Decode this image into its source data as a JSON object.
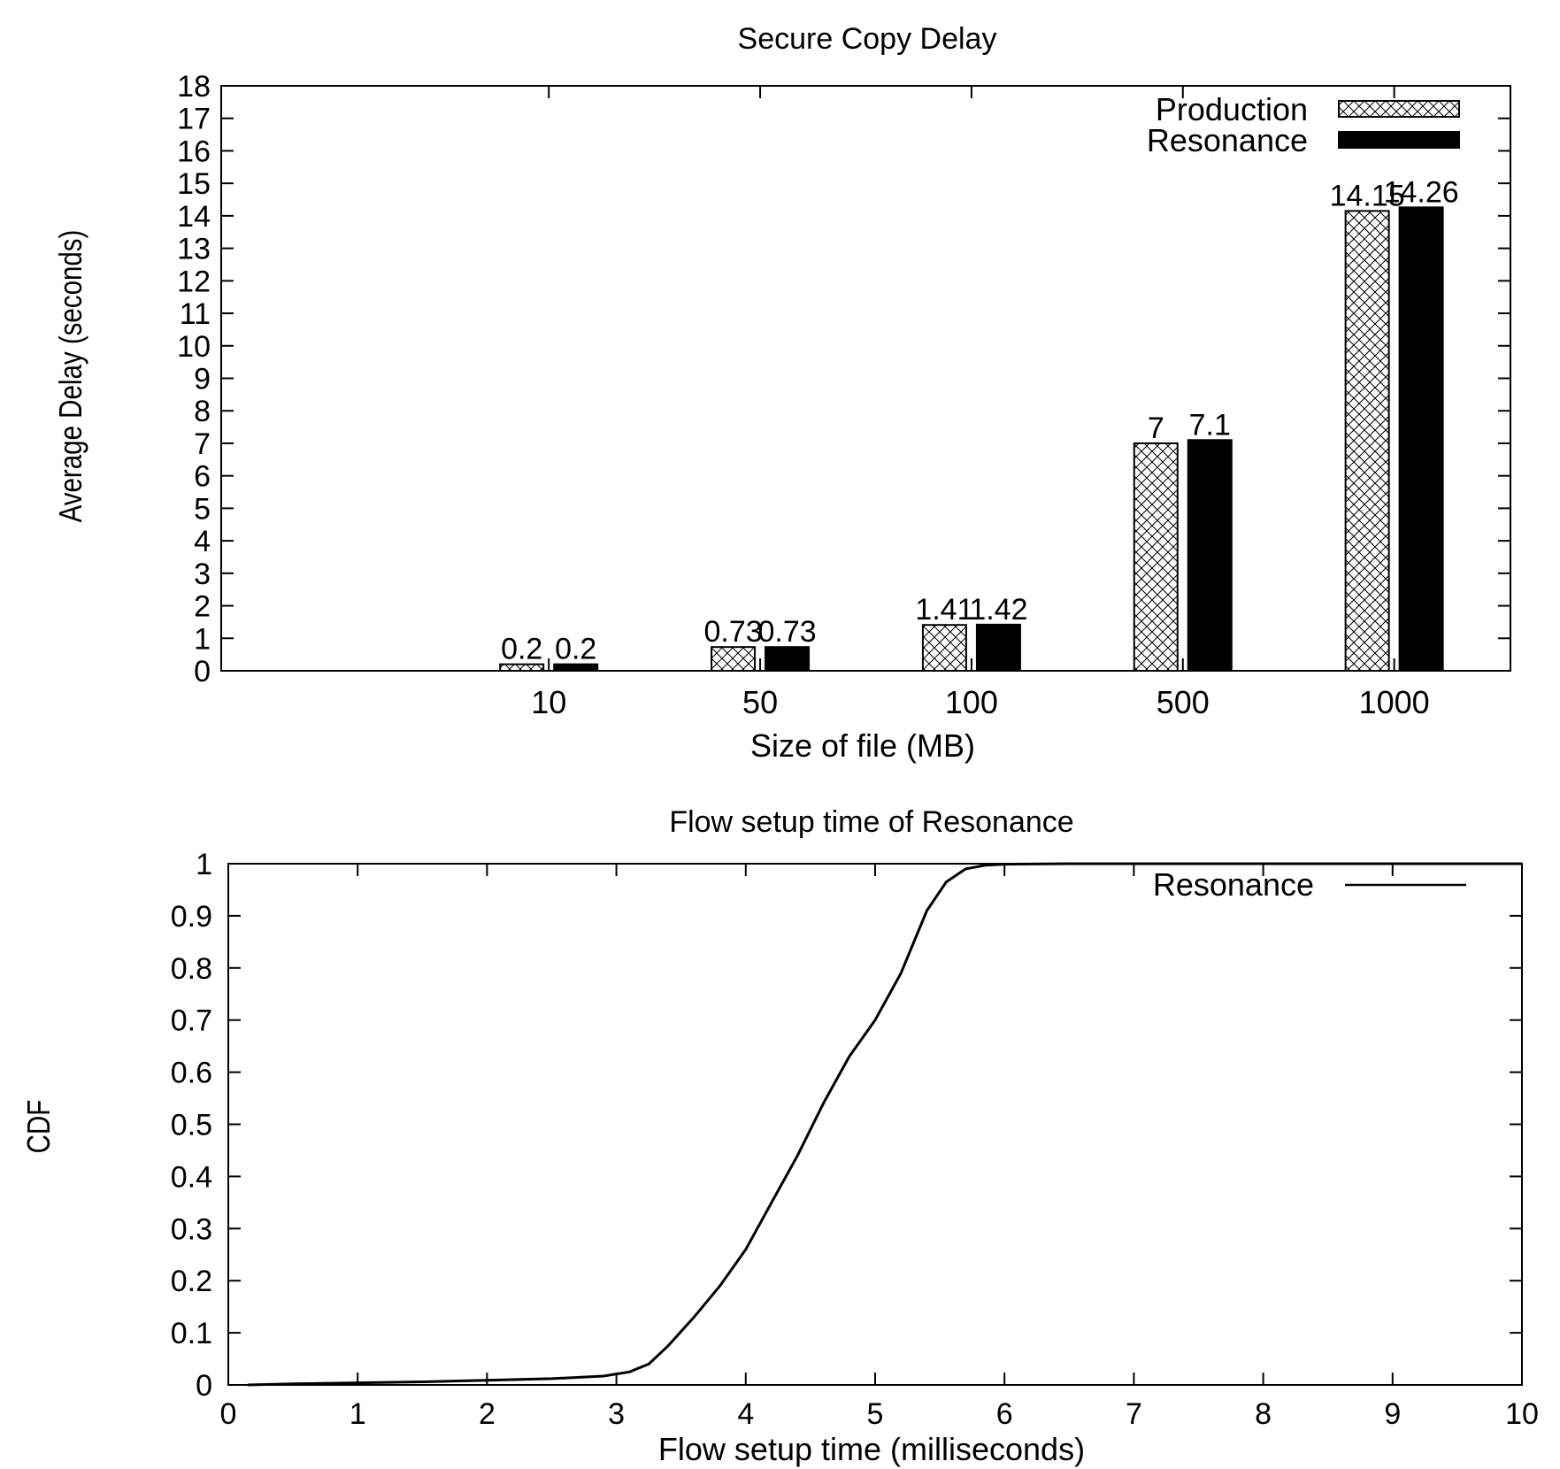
{
  "chart_data": [
    {
      "type": "bar",
      "title": "Secure Copy Delay",
      "xlabel": "Size of file (MB)",
      "ylabel": "Average Delay (seconds)",
      "categories": [
        "10",
        "50",
        "100",
        "500",
        "1000"
      ],
      "ylim": [
        0,
        18
      ],
      "yticks": [
        0,
        1,
        2,
        3,
        4,
        5,
        6,
        7,
        8,
        9,
        10,
        11,
        12,
        13,
        14,
        15,
        16,
        17,
        18
      ],
      "series": [
        {
          "name": "Production",
          "values": [
            0.2,
            0.73,
            1.41,
            7,
            14.15
          ],
          "labels": [
            "0.2",
            "0.73",
            "1.41",
            "7",
            "14.15"
          ],
          "fill": "crosshatch"
        },
        {
          "name": "Resonance",
          "values": [
            0.2,
            0.73,
            1.42,
            7.1,
            14.26
          ],
          "labels": [
            "0.2",
            "0.73",
            "1.42",
            "7.1",
            "14.26"
          ],
          "fill": "#000000"
        }
      ],
      "legend_position": "top-right",
      "grid": false
    },
    {
      "type": "line",
      "title": "Flow setup time of Resonance",
      "xlabel": "Flow setup time (milliseconds)",
      "ylabel": "CDF",
      "xlim": [
        0,
        10
      ],
      "ylim": [
        0,
        1
      ],
      "xticks": [
        0,
        1,
        2,
        3,
        4,
        5,
        6,
        7,
        8,
        9,
        10
      ],
      "yticks": [
        "0",
        "0.1",
        "0.2",
        "0.3",
        "0.4",
        "0.5",
        "0.6",
        "0.7",
        "0.8",
        "0.9",
        "1"
      ],
      "series": [
        {
          "name": "Resonance",
          "color": "#000000",
          "x": [
            0.15,
            0.5,
            1.0,
            1.5,
            2.0,
            2.5,
            2.9,
            3.1,
            3.25,
            3.4,
            3.6,
            3.8,
            4.0,
            4.2,
            4.4,
            4.6,
            4.8,
            5.0,
            5.2,
            5.4,
            5.55,
            5.7,
            5.85,
            6.0,
            6.5,
            7.0,
            8.0,
            9.0,
            10.0
          ],
          "y": [
            0.0,
            0.002,
            0.004,
            0.006,
            0.009,
            0.012,
            0.017,
            0.025,
            0.04,
            0.075,
            0.13,
            0.19,
            0.26,
            0.35,
            0.44,
            0.54,
            0.63,
            0.7,
            0.79,
            0.91,
            0.965,
            0.99,
            0.997,
            0.999,
            1.0,
            1.0,
            1.0,
            1.0,
            1.0
          ]
        }
      ],
      "legend_position": "top-right",
      "grid": false
    }
  ]
}
